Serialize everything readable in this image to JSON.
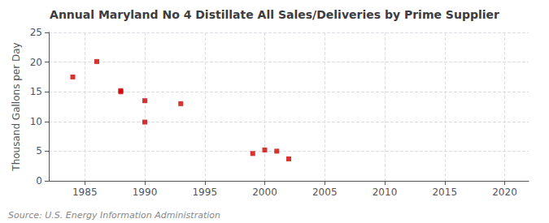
{
  "chart_data": {
    "type": "scatter",
    "title": "Annual Maryland No 4 Distillate All Sales/Deliveries by Prime Supplier",
    "ylabel": "Thousand Gallons per Day",
    "annotations": [
      "Source: U.S. Energy Information Administration"
    ],
    "x": [
      1984,
      1986,
      1988,
      1988,
      1990,
      1990,
      1993,
      1999,
      2000,
      2001,
      2002
    ],
    "values": [
      17.5,
      20.1,
      15.0,
      15.2,
      13.5,
      9.9,
      13.0,
      4.6,
      5.2,
      5.0,
      3.7
    ],
    "color": "#cc0000",
    "marker": "square",
    "xlim": [
      1982,
      2022
    ],
    "ylim": [
      0,
      25
    ],
    "xticks": [
      1985,
      1990,
      1995,
      2000,
      2005,
      2010,
      2015,
      2020
    ],
    "yticks": [
      0,
      5,
      10,
      15,
      20,
      25
    ],
    "grid": true
  }
}
